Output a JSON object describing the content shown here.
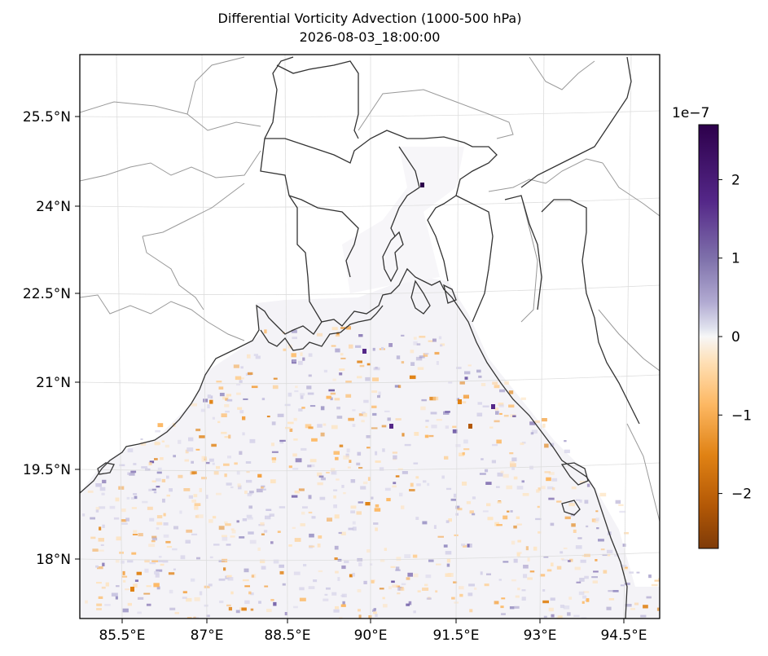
{
  "title": "Differential Vorticity Advection (1000-500 hPa)",
  "subtitle": "2026-08-03_18:00:00",
  "map": {
    "lon_labels": [
      "85.5°E",
      "87°E",
      "88.5°E",
      "90°E",
      "91.5°E",
      "93°E",
      "94.5°E"
    ],
    "lat_labels": [
      "25.5°N",
      "24°N",
      "22.5°N",
      "21°N",
      "19.5°N",
      "18°N"
    ],
    "lon_values": [
      85.5,
      87,
      88.5,
      90,
      91.5,
      93,
      94.5
    ],
    "lat_values": [
      25.5,
      24,
      22.5,
      21,
      19.5,
      18
    ],
    "extent": {
      "lon": [
        84.8,
        94.9
      ],
      "lat": [
        17.2,
        26.6
      ]
    },
    "field": "differential vorticity advection",
    "land_color": "#ffffff",
    "coastline_color": "#333333",
    "border_color": "#999999"
  },
  "colorbar": {
    "colormap": "PuOr",
    "exponent_label": "1e−7",
    "ticks": [
      "2",
      "1",
      "0",
      "−1",
      "−2"
    ],
    "tick_values": [
      2,
      1,
      0,
      -1,
      -2
    ],
    "range": [
      -2.7,
      2.7
    ],
    "top_color": "#2d004b",
    "bottom_color": "#7f3b08"
  }
}
